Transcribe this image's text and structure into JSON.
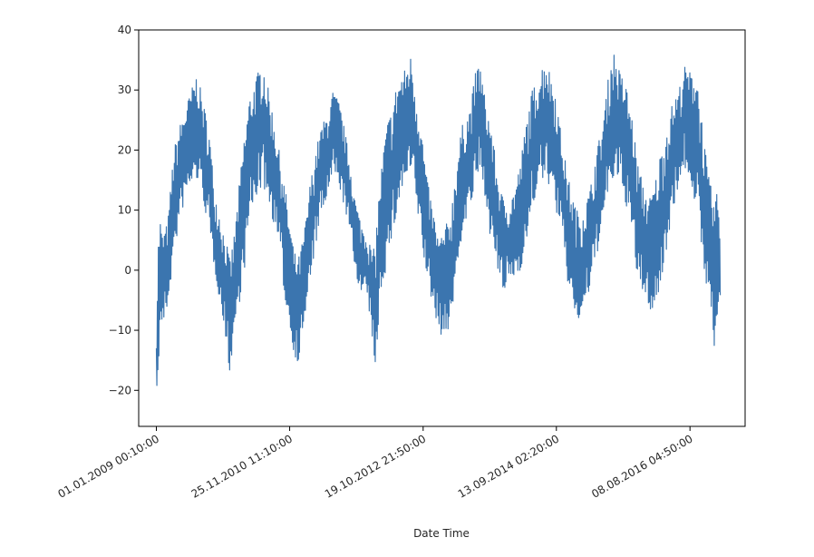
{
  "chart_data": {
    "type": "line",
    "title": "",
    "xlabel": "Date Time",
    "ylabel": "",
    "ylim": [
      -26,
      40
    ],
    "xlim": [
      "2008-10-01T00:00",
      "2017-05-22T00:00"
    ],
    "grid": false,
    "line_color": "#3b75af",
    "y_ticks": [
      -20,
      -10,
      0,
      10,
      20,
      30,
      40
    ],
    "x_ticks": [
      {
        "value": "2009-01-01T00:10",
        "label": "01.01.2009 00:10:00"
      },
      {
        "value": "2010-11-25T11:10",
        "label": "25.11.2010 11:10:00"
      },
      {
        "value": "2012-10-19T21:50",
        "label": "19.10.2012 21:50:00"
      },
      {
        "value": "2014-09-13T02:20",
        "label": "13.09.2014 02:20:00"
      },
      {
        "value": "2016-08-08T04:50",
        "label": "08.08.2016 04:50:00"
      }
    ],
    "series": [
      {
        "name": "",
        "x": [
          "2009-01-01",
          "2009-01-10",
          "2009-01-20",
          "2009-02-01",
          "2009-03-01",
          "2009-04-01",
          "2009-05-01",
          "2009-06-01",
          "2009-07-01",
          "2009-08-01",
          "2009-09-01",
          "2009-10-01",
          "2009-11-01",
          "2009-12-01",
          "2009-12-20",
          "2010-01-01",
          "2010-01-15",
          "2010-01-26",
          "2010-02-10",
          "2010-03-01",
          "2010-04-01",
          "2010-05-01",
          "2010-06-01",
          "2010-07-10",
          "2010-08-01",
          "2010-09-01",
          "2010-10-01",
          "2010-11-01",
          "2010-12-01",
          "2010-12-20",
          "2011-01-10",
          "2011-02-01",
          "2011-02-20",
          "2011-03-10",
          "2011-04-10",
          "2011-05-10",
          "2011-06-10",
          "2011-07-10",
          "2011-08-10",
          "2011-09-10",
          "2011-10-10",
          "2011-11-01",
          "2011-12-01",
          "2012-01-01",
          "2012-02-01",
          "2012-02-10",
          "2012-03-10",
          "2012-04-10",
          "2012-05-10",
          "2012-06-10",
          "2012-07-10",
          "2012-08-20",
          "2012-09-10",
          "2012-10-10",
          "2012-11-10",
          "2012-12-10",
          "2013-01-10",
          "2013-02-10",
          "2013-03-15",
          "2013-04-10",
          "2013-05-10",
          "2013-06-20",
          "2013-07-20",
          "2013-08-10",
          "2013-09-10",
          "2013-10-10",
          "2013-11-10",
          "2013-12-10",
          "2014-01-10",
          "2014-02-10",
          "2014-03-10",
          "2014-04-10",
          "2014-05-10",
          "2014-06-10",
          "2014-07-20",
          "2014-08-10",
          "2014-09-10",
          "2014-10-10",
          "2014-11-10",
          "2014-12-10",
          "2014-12-30",
          "2015-01-20",
          "2015-02-10",
          "2015-03-10",
          "2015-04-10",
          "2015-05-10",
          "2015-06-10",
          "2015-07-05",
          "2015-08-10",
          "2015-09-10",
          "2015-10-10",
          "2015-11-10",
          "2015-12-10",
          "2016-01-10",
          "2016-01-20",
          "2016-02-10",
          "2016-03-10",
          "2016-04-10",
          "2016-05-10",
          "2016-06-10",
          "2016-07-10",
          "2016-08-10",
          "2016-09-10",
          "2016-10-10",
          "2016-11-10",
          "2016-12-10",
          "2017-01-01",
          "2017-01-15"
        ],
        "y_high": [
          -10,
          5,
          9,
          6,
          8,
          20,
          24,
          27,
          30,
          33,
          28,
          24,
          13,
          9,
          6,
          5,
          2,
          3,
          6,
          12,
          22,
          29,
          32,
          35,
          31,
          26,
          20,
          14,
          7,
          3,
          2,
          5,
          9,
          14,
          20,
          24,
          26,
          30,
          28,
          23,
          17,
          12,
          8,
          6,
          3,
          4,
          15,
          24,
          27,
          32,
          33,
          36,
          30,
          24,
          15,
          10,
          5,
          7,
          10,
          18,
          24,
          27,
          33,
          35,
          28,
          24,
          16,
          12,
          11,
          14,
          18,
          25,
          30,
          32,
          36,
          33,
          30,
          22,
          16,
          12,
          10,
          10,
          11,
          14,
          20,
          24,
          32,
          37,
          33,
          31,
          26,
          18,
          14,
          12,
          13,
          15,
          20,
          24,
          28,
          30,
          34,
          33,
          34,
          25,
          16,
          12,
          13,
          10
        ],
        "y_low": [
          -18,
          -23,
          -8,
          -10,
          -6,
          2,
          8,
          12,
          14,
          15,
          12,
          6,
          0,
          -6,
          -10,
          -12,
          -17,
          -16,
          -10,
          -7,
          -1,
          8,
          12,
          14,
          12,
          8,
          4,
          -5,
          -11,
          -14,
          -16,
          -10,
          -8,
          -2,
          4,
          9,
          12,
          16,
          14,
          10,
          5,
          0,
          -4,
          -4,
          -12,
          -21,
          -4,
          0,
          5,
          10,
          14,
          16,
          12,
          5,
          -2,
          -6,
          -10,
          -12,
          -8,
          -2,
          6,
          10,
          14,
          16,
          12,
          4,
          0,
          -4,
          -2,
          -1,
          0,
          4,
          10,
          14,
          15,
          14,
          10,
          6,
          -2,
          -6,
          -9,
          -8,
          -6,
          -3,
          2,
          8,
          12,
          15,
          14,
          11,
          6,
          -2,
          -4,
          -6,
          -8,
          -6,
          -3,
          4,
          10,
          14,
          17,
          15,
          10,
          2,
          -4,
          -14,
          -8,
          -6
        ]
      }
    ]
  }
}
